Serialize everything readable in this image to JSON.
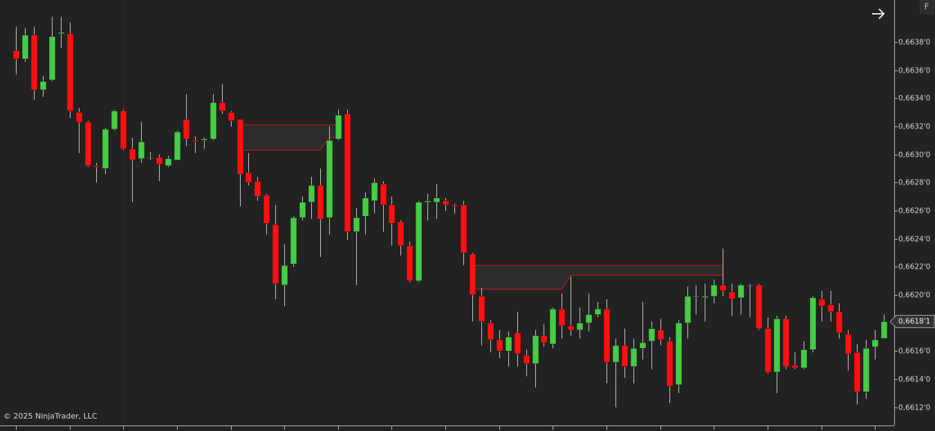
{
  "chart_data": {
    "type": "candlestick",
    "open": [
      0.66374,
      0.66368,
      0.66385,
      0.66346,
      0.66353,
      0.66386,
      0.66386,
      0.6633,
      0.66323,
      0.66292,
      0.6629,
      0.66318,
      0.66331,
      0.66304,
      0.66297,
      0.66298,
      0.66298,
      0.66292,
      0.66296,
      0.66325,
      0.6631,
      0.6631,
      0.66311,
      0.66337,
      0.6633,
      0.66325,
      0.66287,
      0.66281,
      0.66271,
      0.6625,
      0.66207,
      0.66222,
      0.66255,
      0.66266,
      0.66278,
      0.66255,
      0.66311,
      0.66329,
      0.66245,
      0.66256,
      0.66267,
      0.66279,
      0.66264,
      0.66252,
      0.66235,
      0.6621,
      0.66266,
      0.66266,
      0.66267,
      0.66264,
      0.66264,
      0.66229,
      0.66199,
      0.6618,
      0.66168,
      0.6616,
      0.66173,
      0.66157,
      0.66151,
      0.66171,
      0.66165,
      0.6619,
      0.66178,
      0.66175,
      0.6618,
      0.66186,
      0.6619,
      0.66152,
      0.66164,
      0.66149,
      0.66162,
      0.66167,
      0.66175,
      0.66167,
      0.66136,
      0.6618,
      0.66199,
      0.66198,
      0.66199,
      0.66207,
      0.66202,
      0.66198,
      0.66207,
      0.66207,
      0.66176,
      0.66145,
      0.66183,
      0.6615,
      0.66148,
      0.66161,
      0.66197,
      0.66193,
      0.66188,
      0.66172,
      0.66159,
      0.66131,
      0.66163,
      0.66169
    ],
    "high": [
      0.66391,
      0.6639,
      0.66391,
      0.66356,
      0.66398,
      0.66398,
      0.66394,
      0.66333,
      0.66324,
      0.66294,
      0.66319,
      0.66332,
      0.66332,
      0.66312,
      0.66323,
      0.66302,
      0.663,
      0.66299,
      0.66317,
      0.66343,
      0.66313,
      0.66312,
      0.66343,
      0.6635,
      0.66331,
      0.66325,
      0.66301,
      0.66284,
      0.66272,
      0.66264,
      0.66236,
      0.66256,
      0.6627,
      0.66284,
      0.6629,
      0.6632,
      0.66332,
      0.66332,
      0.66262,
      0.66273,
      0.66283,
      0.66281,
      0.6627,
      0.66253,
      0.66238,
      0.66267,
      0.66272,
      0.66279,
      0.66269,
      0.66265,
      0.66267,
      0.6623,
      0.66205,
      0.66182,
      0.66175,
      0.66174,
      0.66188,
      0.66161,
      0.66175,
      0.66179,
      0.66191,
      0.66201,
      0.66213,
      0.66191,
      0.66201,
      0.66195,
      0.66197,
      0.66169,
      0.66176,
      0.66169,
      0.66195,
      0.66181,
      0.66183,
      0.6617,
      0.66182,
      0.66206,
      0.66207,
      0.66208,
      0.66211,
      0.66233,
      0.66208,
      0.66208,
      0.66208,
      0.66208,
      0.66184,
      0.66185,
      0.66185,
      0.66159,
      0.66167,
      0.66199,
      0.66203,
      0.66203,
      0.66194,
      0.66175,
      0.66165,
      0.66168,
      0.66175,
      0.66186
    ],
    "low": [
      0.66357,
      0.66366,
      0.66339,
      0.66341,
      0.66352,
      0.66376,
      0.66326,
      0.66301,
      0.66291,
      0.6628,
      0.66286,
      0.66317,
      0.66303,
      0.66266,
      0.66294,
      0.66296,
      0.66281,
      0.66291,
      0.66296,
      0.66306,
      0.66301,
      0.66304,
      0.6631,
      0.66329,
      0.6632,
      0.66263,
      0.66278,
      0.66267,
      0.66243,
      0.66197,
      0.66192,
      0.6622,
      0.66253,
      0.66254,
      0.66227,
      0.66243,
      0.6631,
      0.66239,
      0.66207,
      0.66243,
      0.66258,
      0.66245,
      0.66235,
      0.66228,
      0.66209,
      0.66209,
      0.66253,
      0.66254,
      0.6626,
      0.66258,
      0.66221,
      0.66181,
      0.66164,
      0.66159,
      0.66155,
      0.66149,
      0.66149,
      0.66142,
      0.66134,
      0.66163,
      0.66162,
      0.66169,
      0.66171,
      0.66169,
      0.66174,
      0.66184,
      0.66137,
      0.6612,
      0.66141,
      0.66137,
      0.66154,
      0.66147,
      0.66164,
      0.66123,
      0.6613,
      0.66169,
      0.66186,
      0.66181,
      0.66194,
      0.66199,
      0.66185,
      0.66186,
      0.66184,
      0.66175,
      0.66144,
      0.6613,
      0.66147,
      0.66147,
      0.66147,
      0.66159,
      0.66181,
      0.66181,
      0.66169,
      0.66146,
      0.66122,
      0.66126,
      0.66154,
      0.66169
    ],
    "close": [
      0.66368,
      0.66385,
      0.66346,
      0.66352,
      0.66384,
      0.66387,
      0.66331,
      0.66323,
      0.66292,
      0.66291,
      0.66318,
      0.66331,
      0.66304,
      0.66296,
      0.66309,
      0.66298,
      0.66293,
      0.66297,
      0.66316,
      0.66311,
      0.66309,
      0.66311,
      0.66337,
      0.66331,
      0.66324,
      0.66286,
      0.6628,
      0.6627,
      0.66251,
      0.66208,
      0.66221,
      0.66255,
      0.66266,
      0.66278,
      0.66254,
      0.6631,
      0.66328,
      0.66245,
      0.66255,
      0.66269,
      0.6628,
      0.66264,
      0.66251,
      0.66235,
      0.6621,
      0.66266,
      0.66267,
      0.66269,
      0.66264,
      0.66263,
      0.6623,
      0.662,
      0.66181,
      0.66168,
      0.6616,
      0.6617,
      0.66158,
      0.66151,
      0.66171,
      0.66166,
      0.6619,
      0.66178,
      0.66175,
      0.6618,
      0.66186,
      0.6619,
      0.66152,
      0.66164,
      0.66149,
      0.66162,
      0.66166,
      0.66176,
      0.66168,
      0.66135,
      0.6618,
      0.66199,
      0.66199,
      0.66199,
      0.66207,
      0.66203,
      0.66197,
      0.66207,
      0.66207,
      0.66176,
      0.66145,
      0.66183,
      0.66149,
      0.66148,
      0.66161,
      0.66198,
      0.66192,
      0.66188,
      0.66173,
      0.66158,
      0.66131,
      0.66162,
      0.66168,
      0.66181
    ],
    "up_color": "#46cc46",
    "down_color": "#ff1010",
    "wick_color": "#c8c8c8",
    "zone_color": "#d01818",
    "zones": [
      {
        "start": 25,
        "end": 36,
        "break": 34,
        "top": 0.66321,
        "bottom": 0.66303,
        "bottom_after": 0.66312
      },
      {
        "start": 51,
        "end": 79,
        "break": 61,
        "top": 0.66221,
        "bottom": 0.66204,
        "bottom_after": 0.66214
      }
    ],
    "ylim": [
      0.66107,
      0.6641
    ],
    "yticks": [
      {
        "value": 0.6612,
        "label": "0,6612'0"
      },
      {
        "value": 0.6614,
        "label": "0,6614'0"
      },
      {
        "value": 0.6616,
        "label": "0,6616'0"
      },
      {
        "value": 0.6618,
        "label": "0,6618'0"
      },
      {
        "value": 0.662,
        "label": "0,6620'0"
      },
      {
        "value": 0.6622,
        "label": "0,6622'0"
      },
      {
        "value": 0.6624,
        "label": "0,6624'0"
      },
      {
        "value": 0.6626,
        "label": "0,6626'0"
      },
      {
        "value": 0.6628,
        "label": "0,6628'0"
      },
      {
        "value": 0.663,
        "label": "0,6630'0"
      },
      {
        "value": 0.6632,
        "label": "0,6632'0"
      },
      {
        "value": 0.6634,
        "label": "0,6634'0"
      },
      {
        "value": 0.6636,
        "label": "0,6636'0"
      },
      {
        "value": 0.6638,
        "label": "0,6638'0"
      }
    ],
    "last_price": {
      "value": 0.66181,
      "label": "0,6618'1"
    },
    "copyright": "© 2025 NinjaTrader, LLC",
    "button_label": "F"
  }
}
